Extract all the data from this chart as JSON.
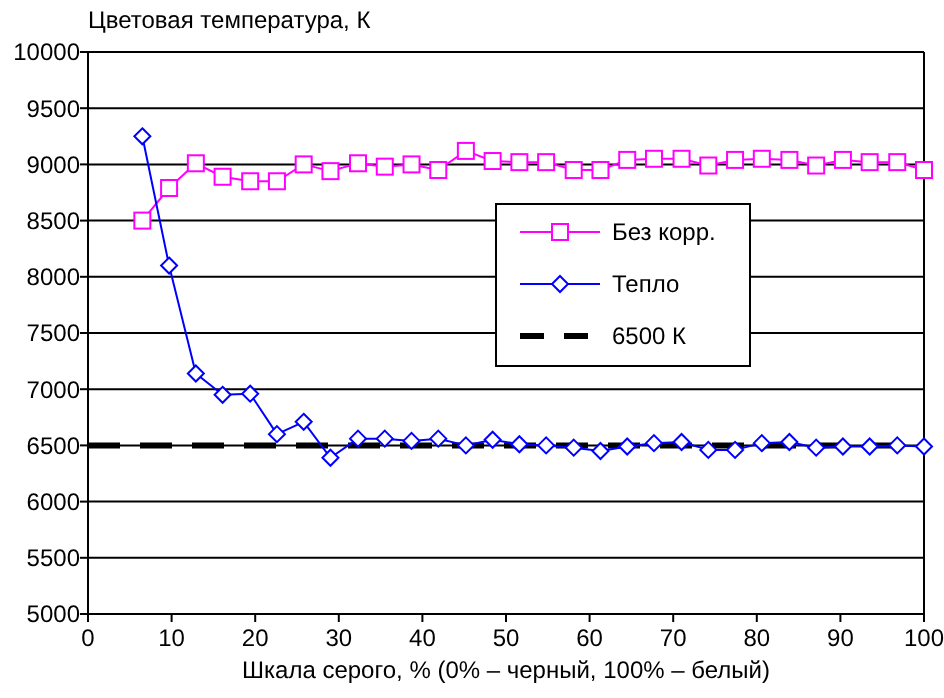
{
  "chart_data": {
    "type": "line",
    "ylabel": "Цветовая температура, К",
    "xlabel": "Шкала серого, % (0% – черный, 100% – белый)",
    "x": [
      6.5,
      9.7,
      12.9,
      16.1,
      19.4,
      22.6,
      25.8,
      29.0,
      32.3,
      35.5,
      38.7,
      41.9,
      45.2,
      48.4,
      51.6,
      54.8,
      58.1,
      61.3,
      64.5,
      67.7,
      71.0,
      74.2,
      77.4,
      80.6,
      83.9,
      87.1,
      90.3,
      93.5,
      96.8,
      100
    ],
    "series": [
      {
        "name": "Без корр.",
        "color": "#ff00ff",
        "marker": "square",
        "values": [
          8500,
          8790,
          9010,
          8890,
          8850,
          8850,
          9000,
          8940,
          9010,
          8980,
          9000,
          8950,
          9120,
          9030,
          9020,
          9020,
          8950,
          8950,
          9040,
          9050,
          9050,
          8990,
          9040,
          9050,
          9040,
          8990,
          9040,
          9020,
          9020,
          8950
        ]
      },
      {
        "name": "Тепло",
        "color": "#0000ff",
        "marker": "diamond",
        "values": [
          9250,
          8100,
          7140,
          6950,
          6960,
          6600,
          6710,
          6390,
          6560,
          6560,
          6540,
          6560,
          6500,
          6550,
          6510,
          6500,
          6480,
          6450,
          6490,
          6520,
          6530,
          6460,
          6460,
          6520,
          6530,
          6480,
          6490,
          6490,
          6500,
          6490
        ]
      }
    ],
    "ref_lines": [
      {
        "axis": "y",
        "value": 6500,
        "label": "6500 К",
        "color": "#000000",
        "line_style": "dashed"
      }
    ],
    "xlim": [
      0,
      100
    ],
    "xticks": [
      0,
      10,
      20,
      30,
      40,
      50,
      60,
      70,
      80,
      90,
      100
    ],
    "ylim": [
      5000,
      10000
    ],
    "yticks": [
      5000,
      5500,
      6000,
      6500,
      7000,
      7500,
      8000,
      8500,
      9000,
      9500,
      10000
    ],
    "grid": "y",
    "legend": "right",
    "line_style": "solid"
  }
}
